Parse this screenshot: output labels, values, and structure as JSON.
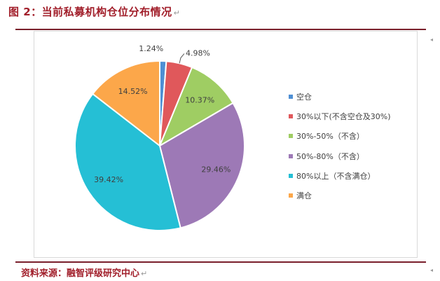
{
  "figure": {
    "title": "图 2：当前私募机构仓位分布情况",
    "source": "资料来源：融智评级研究中心",
    "paragraph_mark": "↵"
  },
  "chart_data": {
    "type": "pie",
    "title": "",
    "legend_position": "right",
    "slices": [
      {
        "label": "空仓",
        "value": 1.24,
        "display": "1.24%",
        "color": "#4e8fd4"
      },
      {
        "label": "30%以下(不含空仓及30%)",
        "value": 4.98,
        "display": "4.98%",
        "color": "#e0585b"
      },
      {
        "label": "30%-50%（不含）",
        "value": 10.37,
        "display": "10.37%",
        "color": "#9fcd63"
      },
      {
        "label": "50%-80%（不含）",
        "value": 29.46,
        "display": "29.46%",
        "color": "#9d79b6"
      },
      {
        "label": "80%以上（不含满仓）",
        "value": 39.42,
        "display": "39.42%",
        "color": "#25bfd5"
      },
      {
        "label": "满仓",
        "value": 14.52,
        "display": "14.52%",
        "color": "#fca74a"
      }
    ]
  }
}
